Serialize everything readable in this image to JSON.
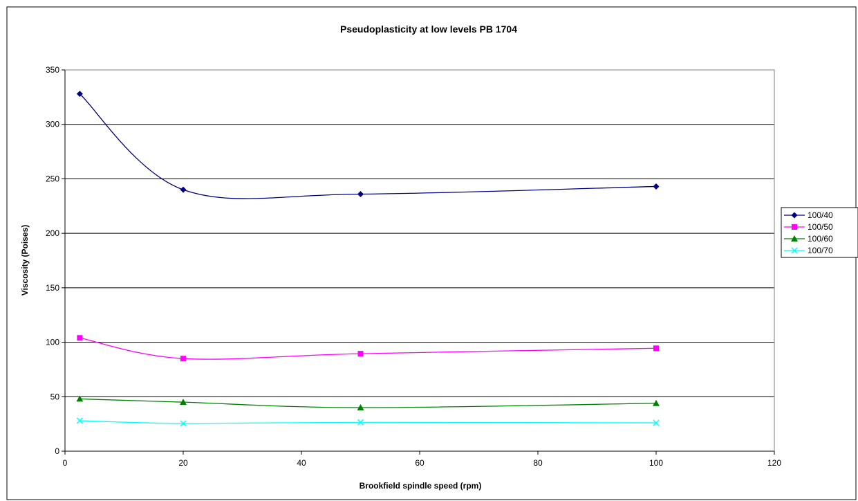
{
  "chart_data": {
    "type": "line",
    "title": "Pseudoplasticity at low levels PB 1704",
    "xlabel": "Brookfield spindle speed (rpm)",
    "ylabel": "Viscosity (Poises)",
    "xlim": [
      0,
      120
    ],
    "ylim": [
      0,
      350
    ],
    "xticks": [
      0,
      20,
      40,
      60,
      80,
      100,
      120
    ],
    "yticks": [
      0,
      50,
      100,
      150,
      200,
      250,
      300,
      350
    ],
    "grid": "horizontal major gridlines",
    "legend_position": "right",
    "x": [
      2.5,
      20,
      50,
      100
    ],
    "series": [
      {
        "name": "100/40",
        "values": [
          328,
          240,
          236,
          243
        ],
        "color": "#000080",
        "marker": "diamond"
      },
      {
        "name": "100/50",
        "values": [
          104,
          85,
          89.5,
          94.5
        ],
        "color": "#FF00FF",
        "marker": "square"
      },
      {
        "name": "100/60",
        "values": [
          48,
          45,
          40,
          44
        ],
        "color": "#008000",
        "marker": "triangle"
      },
      {
        "name": "100/70",
        "values": [
          28,
          25.5,
          26.5,
          26
        ],
        "color": "#00FFFF",
        "marker": "x"
      }
    ]
  }
}
